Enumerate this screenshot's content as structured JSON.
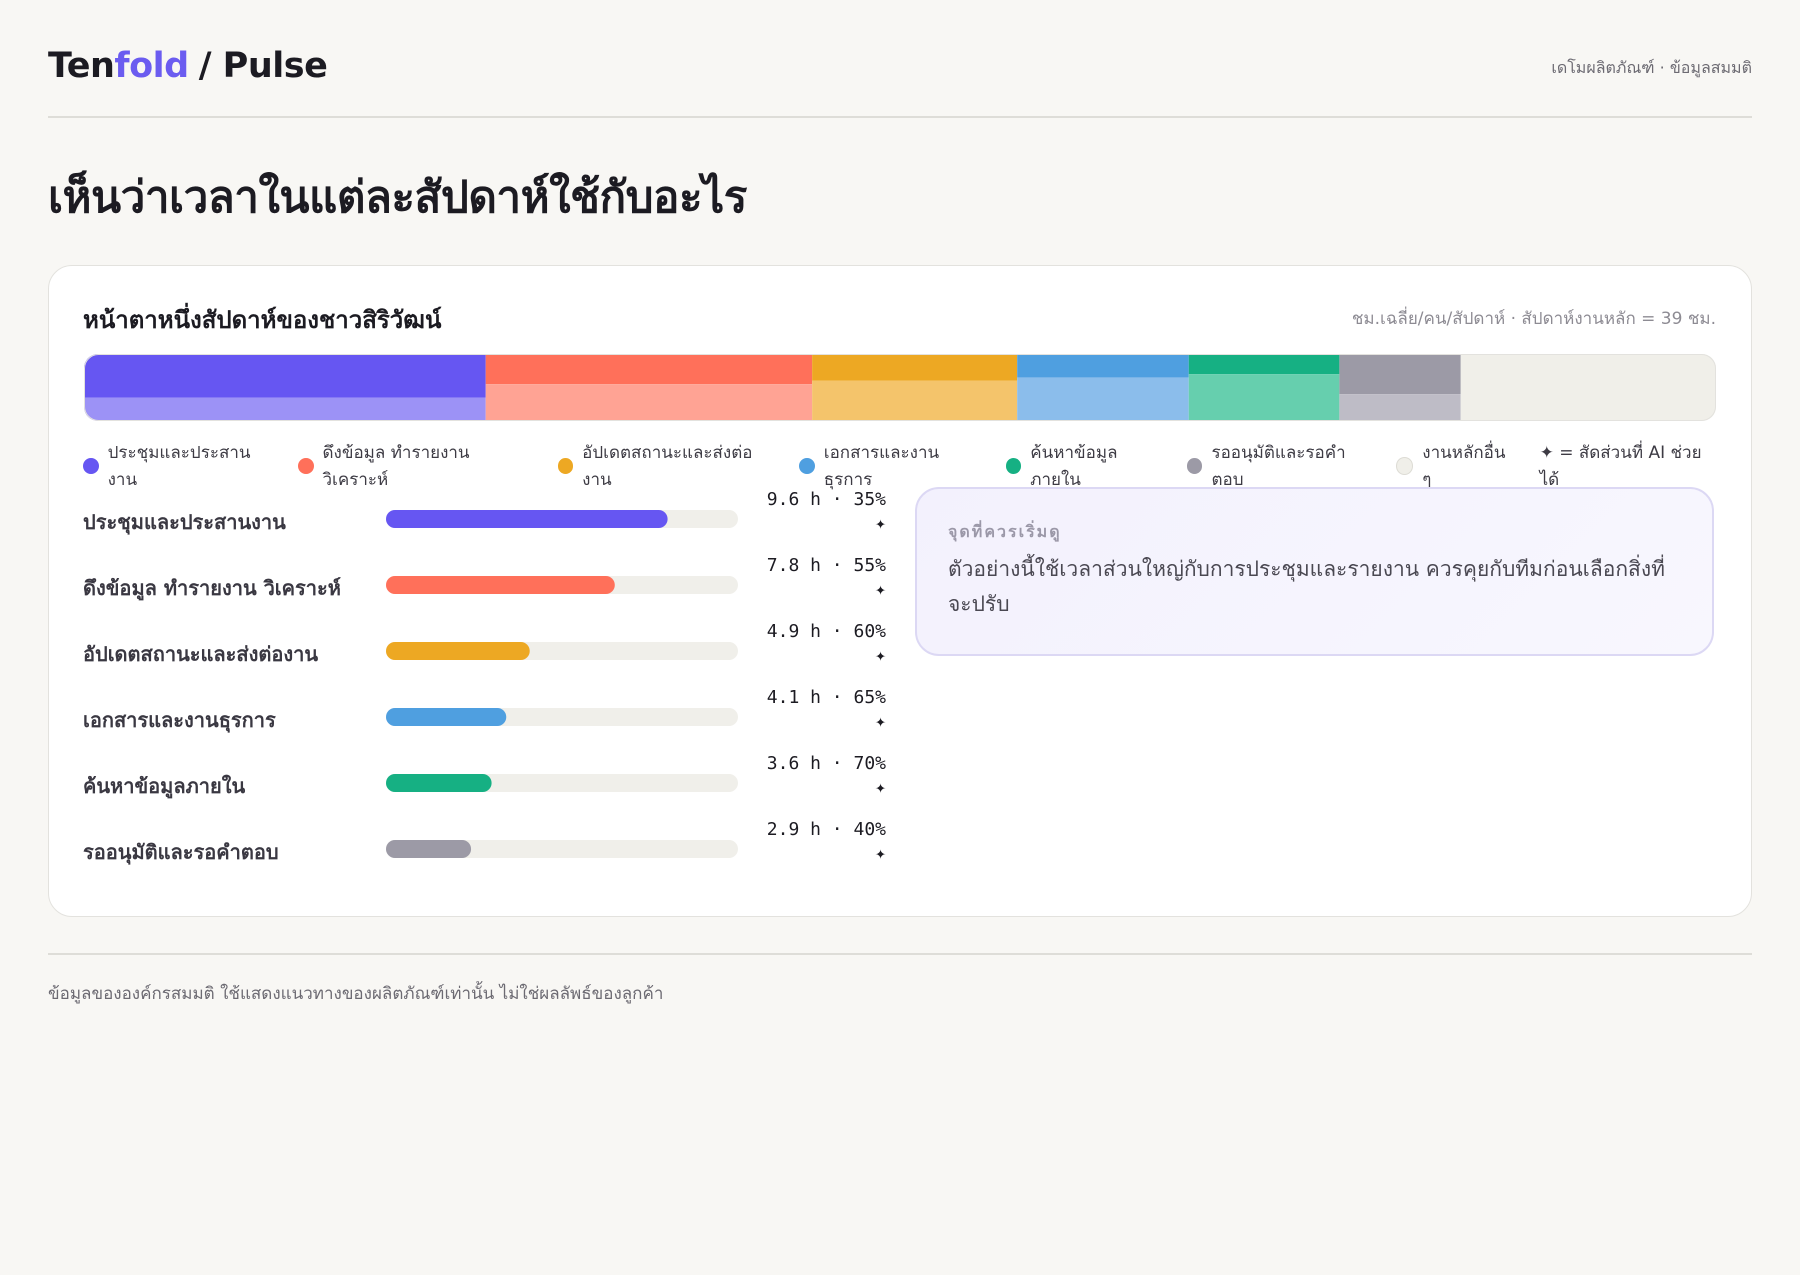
{
  "header": {
    "brand_start": "Ten",
    "brand_accent": "fold",
    "product": "/ Pulse",
    "note": "เดโมผลิตภัณฑ์ · ข้อมูลสมมติ"
  },
  "page_title": "เห็นว่าเวลาในแต่ละสัปดาห์ใช้กับอะไร",
  "chart_data": [
    {
      "type": "stacked_bar",
      "title": "หน้าตาหนึ่งสัปดาห์ของชาวสิริวัฒน์",
      "subtitle": "ชม.เฉลี่ย/คน/สัปดาห์ · สัปดาห์งานหลัก = 39 ชม.",
      "categories": [
        "ประชุมและประสานงาน",
        "ดึงข้อมูล ทำรายงาน วิเคราะห์",
        "อัปเดตสถานะและส่งต่องาน",
        "เอกสารและงานธุรการ",
        "ค้นหาข้อมูลภายใน",
        "รออนุมัติและรอคำตอบ",
        "งานหลักอื่น ๆ"
      ],
      "values": [
        9.6,
        7.8,
        4.9,
        4.1,
        3.6,
        2.9,
        6.1
      ],
      "ai_share": [
        35,
        55,
        60,
        65,
        70,
        40,
        null
      ],
      "colors": [
        "#6656f2",
        "#ff705a",
        "#eda823",
        "#4f9fe0",
        "#16b083",
        "#9c9aa6",
        "#f0efe9"
      ],
      "light_colors": [
        "#9c92f6",
        "#ffa394",
        "#f4c46b",
        "#8bbdeb",
        "#66cfae",
        "#bebcc6",
        "#f0efe9"
      ],
      "xlim": [
        0,
        39
      ],
      "legend_note": "✦ = สัดส่วนที่ AI ช่วยได้"
    },
    {
      "type": "bar",
      "categories": [
        "ประชุมและประสานงาน",
        "ดึงข้อมูล ทำรายงาน วิเคราะห์",
        "อัปเดตสถานะและส่งต่องาน",
        "เอกสารและงานธุรการ",
        "ค้นหาข้อมูลภายใน",
        "รออนุมัติและรอคำตอบ"
      ],
      "values": [
        9.6,
        7.8,
        4.9,
        4.1,
        3.6,
        2.9
      ],
      "value_labels": [
        "9.6 h",
        "7.8 h",
        "4.9 h",
        "4.1 h",
        "3.6 h",
        "2.9 h"
      ],
      "ai_share": [
        35,
        55,
        60,
        65,
        70,
        40
      ],
      "ai_share_labels": [
        "35%",
        "55%",
        "60%",
        "65%",
        "70%",
        "40%"
      ],
      "separator": "·",
      "marker": "✦",
      "colors": [
        "#6656f2",
        "#ff705a",
        "#eda823",
        "#4f9fe0",
        "#16b083",
        "#9c9aa6"
      ],
      "xlim": [
        0,
        12
      ]
    }
  ],
  "insight": {
    "label": "จุดที่ควรเริ่มดู",
    "text": "ตัวอย่างนี้ใช้เวลาส่วนใหญ่กับการประชุมและรายงาน ควรคุยกับทีมก่อนเลือกสิ่งที่จะปรับ"
  },
  "footer": "ข้อมูลขององค์กรสมมติ ใช้แสดงแนวทางของผลิตภัณฑ์เท่านั้น ไม่ใช่ผลลัพธ์ของลูกค้า"
}
